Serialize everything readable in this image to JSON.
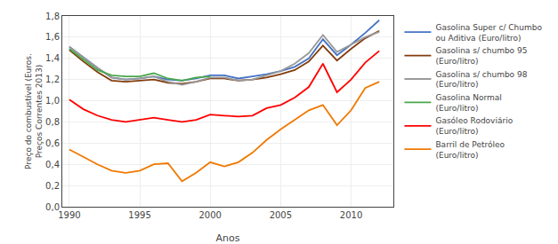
{
  "chart_data": {
    "type": "line",
    "xlabel": "Anos",
    "ylabel": "Preço do combustível (Euros.\nPreços Correntes 2013)",
    "x": [
      1990,
      1991,
      1992,
      1993,
      1994,
      1995,
      1996,
      1997,
      1998,
      1999,
      2000,
      2001,
      2002,
      2003,
      2004,
      2005,
      2006,
      2007,
      2008,
      2009,
      2010,
      2011,
      2012
    ],
    "series": [
      {
        "name": "Gasolina Super c/ Chumbo\nou Aditiva (Euro/litro)",
        "color": "#4472c4",
        "values": [
          1.51,
          1.41,
          1.31,
          1.22,
          1.2,
          1.21,
          1.23,
          1.2,
          1.19,
          1.21,
          1.24,
          1.24,
          1.21,
          1.23,
          1.25,
          1.28,
          1.32,
          1.4,
          1.58,
          1.43,
          1.53,
          1.64,
          1.76
        ]
      },
      {
        "name": "Gasolina s/ chumbo 95\n(Euro/litro)",
        "color": "#843c0c",
        "values": [
          1.48,
          1.37,
          1.27,
          1.19,
          1.18,
          1.19,
          1.2,
          1.17,
          1.16,
          1.18,
          1.21,
          1.21,
          1.19,
          1.2,
          1.22,
          1.25,
          1.29,
          1.37,
          1.52,
          1.38,
          1.49,
          1.59,
          1.66
        ]
      },
      {
        "name": "Gasolina s/ chumbo 98\n(Euro/litro)",
        "color": "#999999",
        "values": [
          1.51,
          1.41,
          1.31,
          1.22,
          1.2,
          1.21,
          1.23,
          1.18,
          1.15,
          1.18,
          1.22,
          1.22,
          1.19,
          1.2,
          1.24,
          1.28,
          1.35,
          1.45,
          1.62,
          1.46,
          1.53,
          1.6,
          1.65
        ]
      },
      {
        "name": "Gasolina Normal\n(Euro/litro)",
        "color": "#4aa84a",
        "values": [
          1.49,
          1.39,
          1.29,
          1.24,
          1.23,
          1.23,
          1.26,
          1.21,
          1.19,
          1.22,
          1.23,
          null,
          null,
          null,
          null,
          null,
          null,
          null,
          null,
          null,
          null,
          null,
          null
        ]
      },
      {
        "name": "Gasóleo Rodoviário\n(Euro/litro)",
        "color": "#ff0000",
        "values": [
          1.01,
          0.92,
          0.86,
          0.82,
          0.8,
          0.82,
          0.84,
          0.82,
          0.8,
          0.82,
          0.87,
          0.86,
          0.85,
          0.86,
          0.93,
          0.96,
          1.03,
          1.13,
          1.35,
          1.08,
          1.2,
          1.36,
          1.47
        ]
      },
      {
        "name": "Barril de Petróleo\n(Euro/litro)",
        "color": "#f07800",
        "values": [
          0.54,
          0.47,
          0.4,
          0.34,
          0.32,
          0.34,
          0.4,
          0.41,
          0.24,
          0.32,
          0.42,
          0.38,
          0.42,
          0.51,
          0.63,
          0.73,
          0.82,
          0.91,
          0.96,
          0.77,
          0.91,
          1.12,
          1.18
        ]
      }
    ],
    "xlim": [
      1989.5,
      2013.0
    ],
    "xticks": [
      1990,
      1995,
      2000,
      2005,
      2010
    ],
    "ylim": [
      0.0,
      1.8
    ],
    "yticks": [
      {
        "value": 0.0,
        "label": "0,0"
      },
      {
        "value": 0.2,
        "label": "0,2"
      },
      {
        "value": 0.4,
        "label": "0,4"
      },
      {
        "value": 0.6,
        "label": "0,6"
      },
      {
        "value": 0.8,
        "label": "0,8"
      },
      {
        "value": 1.0,
        "label": "1,0"
      },
      {
        "value": 1.2,
        "label": "1,2"
      },
      {
        "value": 1.4,
        "label": "1,4"
      },
      {
        "value": 1.6,
        "label": "1,6"
      },
      {
        "value": 1.8,
        "label": "1,8"
      }
    ],
    "grid": true,
    "legend": "right"
  }
}
